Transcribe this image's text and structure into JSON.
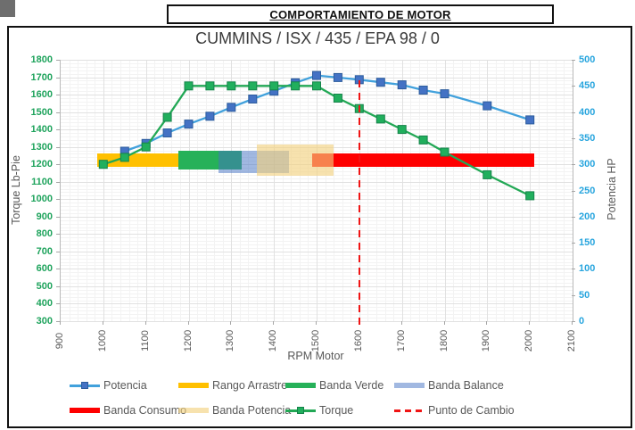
{
  "page": {
    "title_box": "COMPORTAMIENTO DE MOTOR",
    "subtitle": "CUMMINS / ISX / 435 / EPA 98 / 0"
  },
  "colors": {
    "potencia_line": "#41a1dc",
    "potencia_marker": "#4472c4",
    "potencia_marker_border": "#2c5c9c",
    "torque_line": "#22a855",
    "torque_marker": "#21af5d",
    "torque_marker_border": "#15834a",
    "punto_de_cambio": "#f01414",
    "left_axis_labels": "#1ea35c",
    "right_axis_labels": "#28a5de",
    "x_axis_labels": "#595959",
    "band_rango_arrastre": "#ffc000",
    "band_verde": "#26b159",
    "band_consumo": "#fe0000",
    "band_balance": "rgba(68,114,196,0.5)",
    "band_potencia": "rgba(242,209,125,0.62)"
  },
  "chart_data": {
    "type": "line",
    "title": "CUMMINS / ISX / 435 / EPA 98 / 0",
    "x": [
      1000,
      1050,
      1100,
      1150,
      1200,
      1250,
      1300,
      1350,
      1400,
      1450,
      1500,
      1550,
      1600,
      1650,
      1700,
      1750,
      1800,
      1900,
      2000
    ],
    "series": [
      {
        "name": "Potencia",
        "axis": "right",
        "unit": "HP",
        "values": [
          null,
          325,
          340,
          360,
          377,
          392,
          409,
          425,
          440,
          456,
          470,
          466,
          462,
          457,
          452,
          442,
          435,
          412,
          385
        ]
      },
      {
        "name": "Torque",
        "axis": "left",
        "unit": "Lb-Pie",
        "values": [
          1200,
          1240,
          1300,
          1470,
          1650,
          1650,
          1650,
          1650,
          1650,
          1650,
          1650,
          1580,
          1520,
          1460,
          1400,
          1340,
          1270,
          1140,
          1020
        ]
      }
    ],
    "bands": [
      {
        "name": "Rango Arrastre",
        "rpm_from": 985,
        "rpm_to": 1175,
        "torque_from": 1185,
        "torque_to": 1265,
        "color": "#ffc000"
      },
      {
        "name": "Banda Verde",
        "rpm_from": 1175,
        "rpm_to": 1325,
        "torque_from": 1170,
        "torque_to": 1280,
        "color": "#26b159"
      },
      {
        "name": "Banda Consumo",
        "rpm_from": 1490,
        "rpm_to": 2010,
        "torque_from": 1185,
        "torque_to": 1265,
        "color": "#fe0000"
      },
      {
        "name": "Banda Balance",
        "rpm_from": 1270,
        "rpm_to": 1435,
        "torque_from": 1150,
        "torque_to": 1280,
        "color": "rgba(68,114,196,0.5)"
      },
      {
        "name": "Banda Potencia",
        "rpm_from": 1360,
        "rpm_to": 1540,
        "torque_from": 1135,
        "torque_to": 1315,
        "color": "rgba(242,209,125,0.62)"
      }
    ],
    "punto_de_cambio_rpm": 1600,
    "axes": {
      "x": {
        "label": "RPM Motor",
        "min": 900,
        "max": 2100,
        "step": 100,
        "ticks": [
          900,
          1000,
          1100,
          1200,
          1300,
          1400,
          1500,
          1600,
          1700,
          1800,
          1900,
          2000,
          2100
        ]
      },
      "left": {
        "label": "Torque Lb-Pie",
        "min": 300,
        "max": 1800,
        "step": 100,
        "ticks": [
          300,
          400,
          500,
          600,
          700,
          800,
          900,
          1000,
          1100,
          1200,
          1300,
          1400,
          1500,
          1600,
          1700,
          1800
        ]
      },
      "right": {
        "label": "Potencia HP",
        "min": 0,
        "max": 500,
        "step": 50,
        "ticks": [
          0,
          50,
          100,
          150,
          200,
          250,
          300,
          350,
          400,
          450,
          500
        ]
      }
    },
    "grid": {
      "minor_step_x": 20,
      "minor_step_y": 20,
      "major_color": "#e1e1e1",
      "minor_color": "#f3f3f3"
    },
    "legend_position": "bottom"
  },
  "legend": {
    "items": [
      {
        "label": "Potencia",
        "type": "line-marker",
        "line": "#41a1dc",
        "marker": "#4472c4",
        "marker_border": "#2c5c9c",
        "row": 0,
        "col": 0
      },
      {
        "label": "Rango Arrastre",
        "type": "band",
        "color": "#ffc000",
        "row": 0,
        "col": 1
      },
      {
        "label": "Banda Verde",
        "type": "band",
        "color": "#26b159",
        "row": 0,
        "col": 2
      },
      {
        "label": "Banda Balance",
        "type": "band",
        "color": "rgba(68,114,196,0.5)",
        "row": 0,
        "col": 3
      },
      {
        "label": "Banda Consumo",
        "type": "band",
        "color": "#fe0000",
        "row": 1,
        "col": 0
      },
      {
        "label": "Banda Potencia",
        "type": "band",
        "color": "rgba(242,209,125,0.62)",
        "row": 1,
        "col": 1
      },
      {
        "label": "Torque",
        "type": "line-marker",
        "line": "#22a855",
        "marker": "#21af5d",
        "marker_border": "#15834a",
        "row": 1,
        "col": 2
      },
      {
        "label": "Punto de Cambio",
        "type": "dash",
        "color": "#f01414",
        "row": 1,
        "col": 3
      }
    ]
  }
}
